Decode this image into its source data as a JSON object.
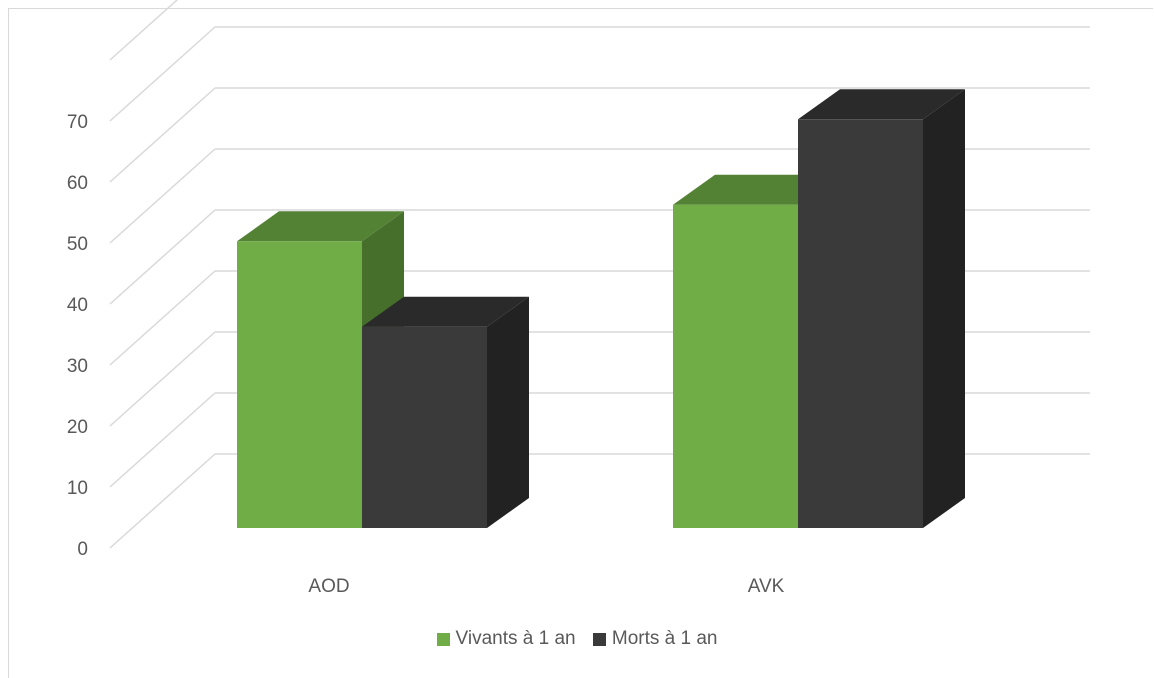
{
  "chart_data": {
    "type": "bar",
    "bar_style": "3d-clustered-column",
    "categories": [
      "AOD",
      "AVK"
    ],
    "series": [
      {
        "name": "Vivants à 1 an",
        "values": [
          47,
          53
        ],
        "color": "#70ad47",
        "top_color": "#548235",
        "side_color": "#466f2b"
      },
      {
        "name": "Morts à 1 an",
        "values": [
          33,
          67
        ],
        "color": "#3a3a3a",
        "top_color": "#2a2a2a",
        "side_color": "#222222"
      }
    ],
    "ylim": [
      0,
      70
    ],
    "yticks": [
      "0",
      "10",
      "20",
      "30",
      "40",
      "50",
      "60",
      "70"
    ],
    "grid": true,
    "legend_position": "bottom",
    "gridline_color": "#d9d9d9"
  }
}
